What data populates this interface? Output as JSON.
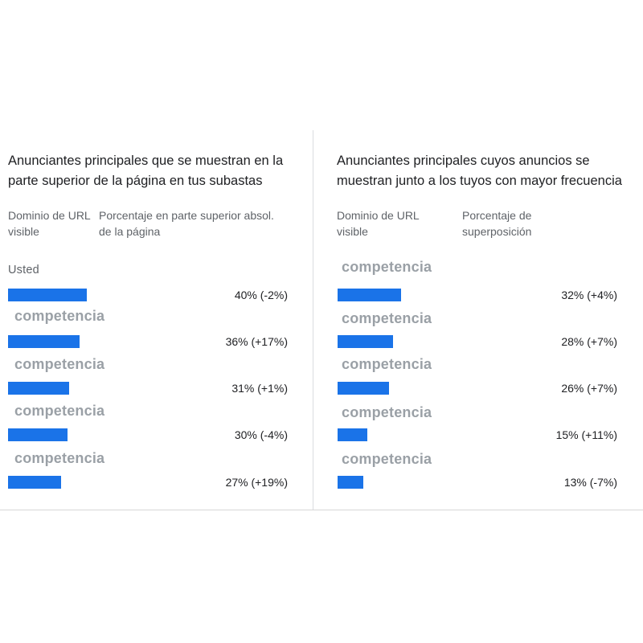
{
  "chart_data": [
    {
      "type": "bar",
      "title": "Anunciantes principales que se muestran en la parte superior de la página en tus subastas",
      "column_headers": [
        "Dominio de URL visible",
        "Porcentaje en parte superior absol. de la página"
      ],
      "categories": [
        "Usted",
        "competencia",
        "competencia",
        "competencia",
        "competencia"
      ],
      "values": [
        40,
        36,
        31,
        30,
        27
      ],
      "changes": [
        "-2%",
        "+17%",
        "+1%",
        "-4%",
        "+19%"
      ],
      "value_labels": [
        "40% (-2%)",
        "36% (+17%)",
        "31% (+1%)",
        "30% (-4%)",
        "27% (+19%)"
      ],
      "unit": "%",
      "bar_color": "#1a73e8"
    },
    {
      "type": "bar",
      "title": "Anunciantes principales cuyos anuncios se muestran junto a los tuyos con mayor frecuencia",
      "column_headers": [
        "Dominio de URL visible",
        "Porcentaje de superposición"
      ],
      "categories": [
        "competencia",
        "competencia",
        "competencia",
        "competencia",
        "competencia"
      ],
      "values": [
        32,
        28,
        26,
        15,
        13
      ],
      "changes": [
        "+4%",
        "+7%",
        "+7%",
        "+11%",
        "-7%"
      ],
      "value_labels": [
        "32% (+4%)",
        "28% (+7%)",
        "26% (+7%)",
        "15% (+11%)",
        "13% (-7%)"
      ],
      "unit": "%",
      "bar_color": "#1a73e8"
    }
  ]
}
